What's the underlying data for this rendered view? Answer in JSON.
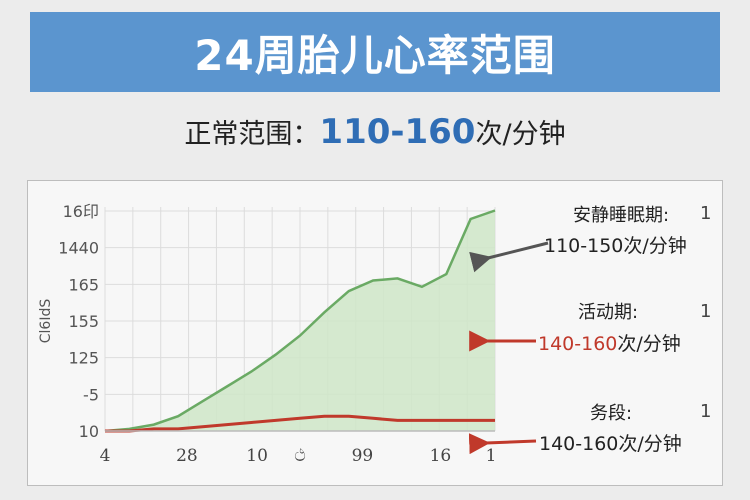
{
  "header": {
    "title": "24周胎儿心率范围"
  },
  "normal_range": {
    "label": "正常范围：",
    "value": "110-160",
    "unit": "次/分钟"
  },
  "annotations": [
    {
      "title": "安静睡眠期:",
      "number": "1",
      "value_highlight": "",
      "value_rest": "110-150次/分钟",
      "arrow_color": "#555555"
    },
    {
      "title": "活动期:",
      "number": "1",
      "value_highlight": "140-160",
      "value_rest": "次/分钟",
      "arrow_color": "#c0392b"
    },
    {
      "title": "务段:",
      "number": "1",
      "value_highlight": "",
      "value_rest": "140-160次/分钟",
      "arrow_color": "#c0392b"
    }
  ],
  "chart_data": {
    "type": "area",
    "y_tick_labels": [
      "16印",
      "1440",
      "165",
      "155",
      "125",
      "-5",
      "10"
    ],
    "y_axis_label": "Cl6IdS",
    "x_tick_labels": [
      "4",
      "28",
      "10",
      "ථ",
      "99",
      "16",
      "1"
    ],
    "grid": true,
    "series": [
      {
        "color": "#6aaa64",
        "fill": "#cfe6c8",
        "values": [
          0.0,
          0.01,
          0.03,
          0.07,
          0.14,
          0.21,
          0.28,
          0.36,
          0.45,
          0.56,
          0.66,
          0.71,
          0.72,
          0.68,
          0.74,
          1.0,
          1.04
        ]
      },
      {
        "color": "#c0392b",
        "values": [
          0.0,
          0.0,
          0.01,
          0.01,
          0.02,
          0.03,
          0.04,
          0.05,
          0.06,
          0.07,
          0.07,
          0.06,
          0.05,
          0.05,
          0.05,
          0.05,
          0.05
        ]
      }
    ]
  }
}
